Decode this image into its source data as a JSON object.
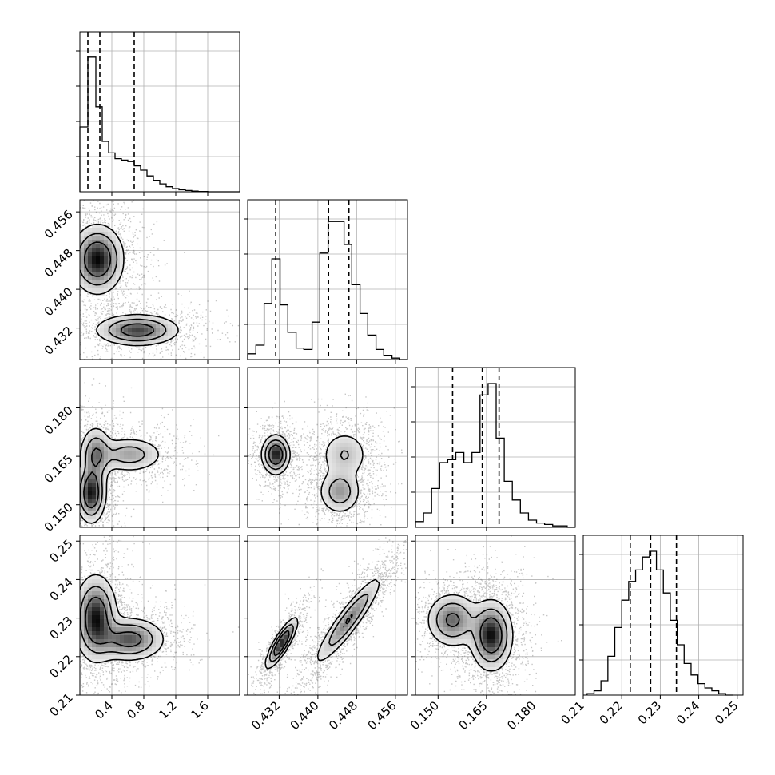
{
  "chart_data": {
    "type": "corner",
    "grid": true,
    "parameters": [
      {
        "range": [
          0.0,
          2.0
        ],
        "ticks": [
          0.4,
          0.8,
          1.2,
          1.6
        ],
        "tick_labels": [
          "0.4",
          "0.8",
          "1.2",
          "1.6"
        ],
        "quantiles": [
          0.1,
          0.25,
          0.68
        ],
        "hist_bin_edges": [
          0.0,
          0.1,
          0.2,
          0.28,
          0.36,
          0.44,
          0.52,
          0.6,
          0.68,
          0.76,
          0.84,
          0.92,
          1.0,
          1.08,
          1.16,
          1.24,
          1.32,
          1.4,
          1.48,
          1.6,
          2.0
        ],
        "hist_counts": [
          0.45,
          0.94,
          0.59,
          0.35,
          0.27,
          0.23,
          0.22,
          0.21,
          0.18,
          0.15,
          0.11,
          0.08,
          0.055,
          0.035,
          0.022,
          0.014,
          0.009,
          0.005,
          0.002,
          0.0
        ]
      },
      {
        "range": [
          0.4255,
          0.4585
        ],
        "ticks": [
          0.432,
          0.44,
          0.448,
          0.456
        ],
        "tick_labels": [
          "0.432",
          "0.440",
          "0.448",
          "0.456"
        ],
        "quantiles": [
          0.4313,
          0.4422,
          0.4464
        ],
        "hist_bin_edges": [
          0.4255,
          0.4272,
          0.4289,
          0.4305,
          0.4322,
          0.4338,
          0.4355,
          0.4371,
          0.4388,
          0.4404,
          0.4421,
          0.4437,
          0.4454,
          0.447,
          0.4487,
          0.4503,
          0.452,
          0.4536,
          0.4553,
          0.4569,
          0.4585
        ],
        "hist_counts": [
          0.04,
          0.1,
          0.39,
          0.7,
          0.38,
          0.19,
          0.08,
          0.07,
          0.26,
          0.74,
          0.96,
          0.96,
          0.8,
          0.52,
          0.32,
          0.17,
          0.07,
          0.03,
          0.01,
          0.0
        ]
      },
      {
        "range": [
          0.143,
          0.1925
        ],
        "ticks": [
          0.15,
          0.165,
          0.18
        ],
        "tick_labels": [
          "0.150",
          "0.165",
          "0.180"
        ],
        "quantiles": [
          0.1545,
          0.1637,
          0.1689
        ],
        "hist_bin_edges": [
          0.143,
          0.1455,
          0.148,
          0.1505,
          0.153,
          0.1555,
          0.158,
          0.1605,
          0.163,
          0.1655,
          0.168,
          0.1705,
          0.173,
          0.1755,
          0.178,
          0.1805,
          0.183,
          0.1855,
          0.19,
          0.1925
        ],
        "hist_counts": [
          0.04,
          0.1,
          0.27,
          0.45,
          0.47,
          0.52,
          0.45,
          0.52,
          0.92,
          1.0,
          0.62,
          0.32,
          0.19,
          0.1,
          0.05,
          0.03,
          0.02,
          0.01,
          0.0
        ]
      },
      {
        "range": [
          0.21,
          0.2515
        ],
        "ticks": [
          0.21,
          0.22,
          0.23,
          0.24,
          0.25
        ],
        "tick_labels": [
          "0.21",
          "0.22",
          "0.23",
          "0.24",
          "0.25"
        ],
        "quantiles": [
          0.2222,
          0.2275,
          0.2342
        ],
        "hist_bin_edges": [
          0.211,
          0.2128,
          0.2146,
          0.2164,
          0.2182,
          0.22,
          0.2218,
          0.2236,
          0.2254,
          0.2272,
          0.229,
          0.2308,
          0.2326,
          0.2344,
          0.2362,
          0.238,
          0.2398,
          0.2416,
          0.2434,
          0.2452,
          0.247,
          0.2488
        ],
        "hist_counts": [
          0.01,
          0.03,
          0.1,
          0.27,
          0.47,
          0.66,
          0.79,
          0.87,
          0.96,
          1.0,
          0.87,
          0.71,
          0.52,
          0.35,
          0.22,
          0.14,
          0.08,
          0.05,
          0.03,
          0.01,
          0.0
        ]
      }
    ],
    "pairs": [
      {
        "x": 0,
        "y": 1,
        "modes": [
          {
            "cx": 0.22,
            "cy": 0.4462,
            "sx": 0.16,
            "sy": 0.0035,
            "w": 0.62,
            "rho": 0.0
          },
          {
            "cx": 0.72,
            "cy": 0.4316,
            "sx": 0.26,
            "sy": 0.0016,
            "w": 0.38,
            "rho": 0.0
          }
        ]
      },
      {
        "x": 0,
        "y": 2,
        "modes": [
          {
            "cx": 0.14,
            "cy": 0.1535,
            "sx": 0.09,
            "sy": 0.0045,
            "w": 0.42,
            "rho": 0.0
          },
          {
            "cx": 0.2,
            "cy": 0.1655,
            "sx": 0.1,
            "sy": 0.0045,
            "w": 0.28,
            "rho": 0.0
          },
          {
            "cx": 0.62,
            "cy": 0.1655,
            "sx": 0.22,
            "sy": 0.0028,
            "w": 0.3,
            "rho": 0.0
          }
        ]
      },
      {
        "x": 0,
        "y": 3,
        "modes": [
          {
            "cx": 0.2,
            "cy": 0.23,
            "sx": 0.13,
            "sy": 0.0055,
            "w": 0.6,
            "rho": 0.0
          },
          {
            "cx": 0.62,
            "cy": 0.2245,
            "sx": 0.22,
            "sy": 0.0028,
            "w": 0.4,
            "rho": 0.0
          }
        ]
      },
      {
        "x": 1,
        "y": 2,
        "modes": [
          {
            "cx": 0.4313,
            "cy": 0.1655,
            "sx": 0.0014,
            "sy": 0.003,
            "w": 0.36,
            "rho": 0.0
          },
          {
            "cx": 0.4455,
            "cy": 0.1655,
            "sx": 0.0026,
            "sy": 0.004,
            "w": 0.3,
            "rho": 0.0
          },
          {
            "cx": 0.4445,
            "cy": 0.154,
            "sx": 0.0022,
            "sy": 0.0035,
            "w": 0.34,
            "rho": 0.0
          }
        ]
      },
      {
        "x": 1,
        "y": 3,
        "modes": [
          {
            "cx": 0.4325,
            "cy": 0.2235,
            "sx": 0.0016,
            "sy": 0.0032,
            "w": 0.36,
            "rho": 0.85
          },
          {
            "cx": 0.4463,
            "cy": 0.2295,
            "sx": 0.0035,
            "sy": 0.0058,
            "w": 0.64,
            "rho": 0.92
          }
        ]
      },
      {
        "x": 2,
        "y": 3,
        "modes": [
          {
            "cx": 0.1545,
            "cy": 0.2295,
            "sx": 0.004,
            "sy": 0.0035,
            "w": 0.4,
            "rho": 0.0
          },
          {
            "cx": 0.1665,
            "cy": 0.2255,
            "sx": 0.0032,
            "sy": 0.0045,
            "w": 0.6,
            "rho": 0.0
          }
        ]
      }
    ]
  }
}
